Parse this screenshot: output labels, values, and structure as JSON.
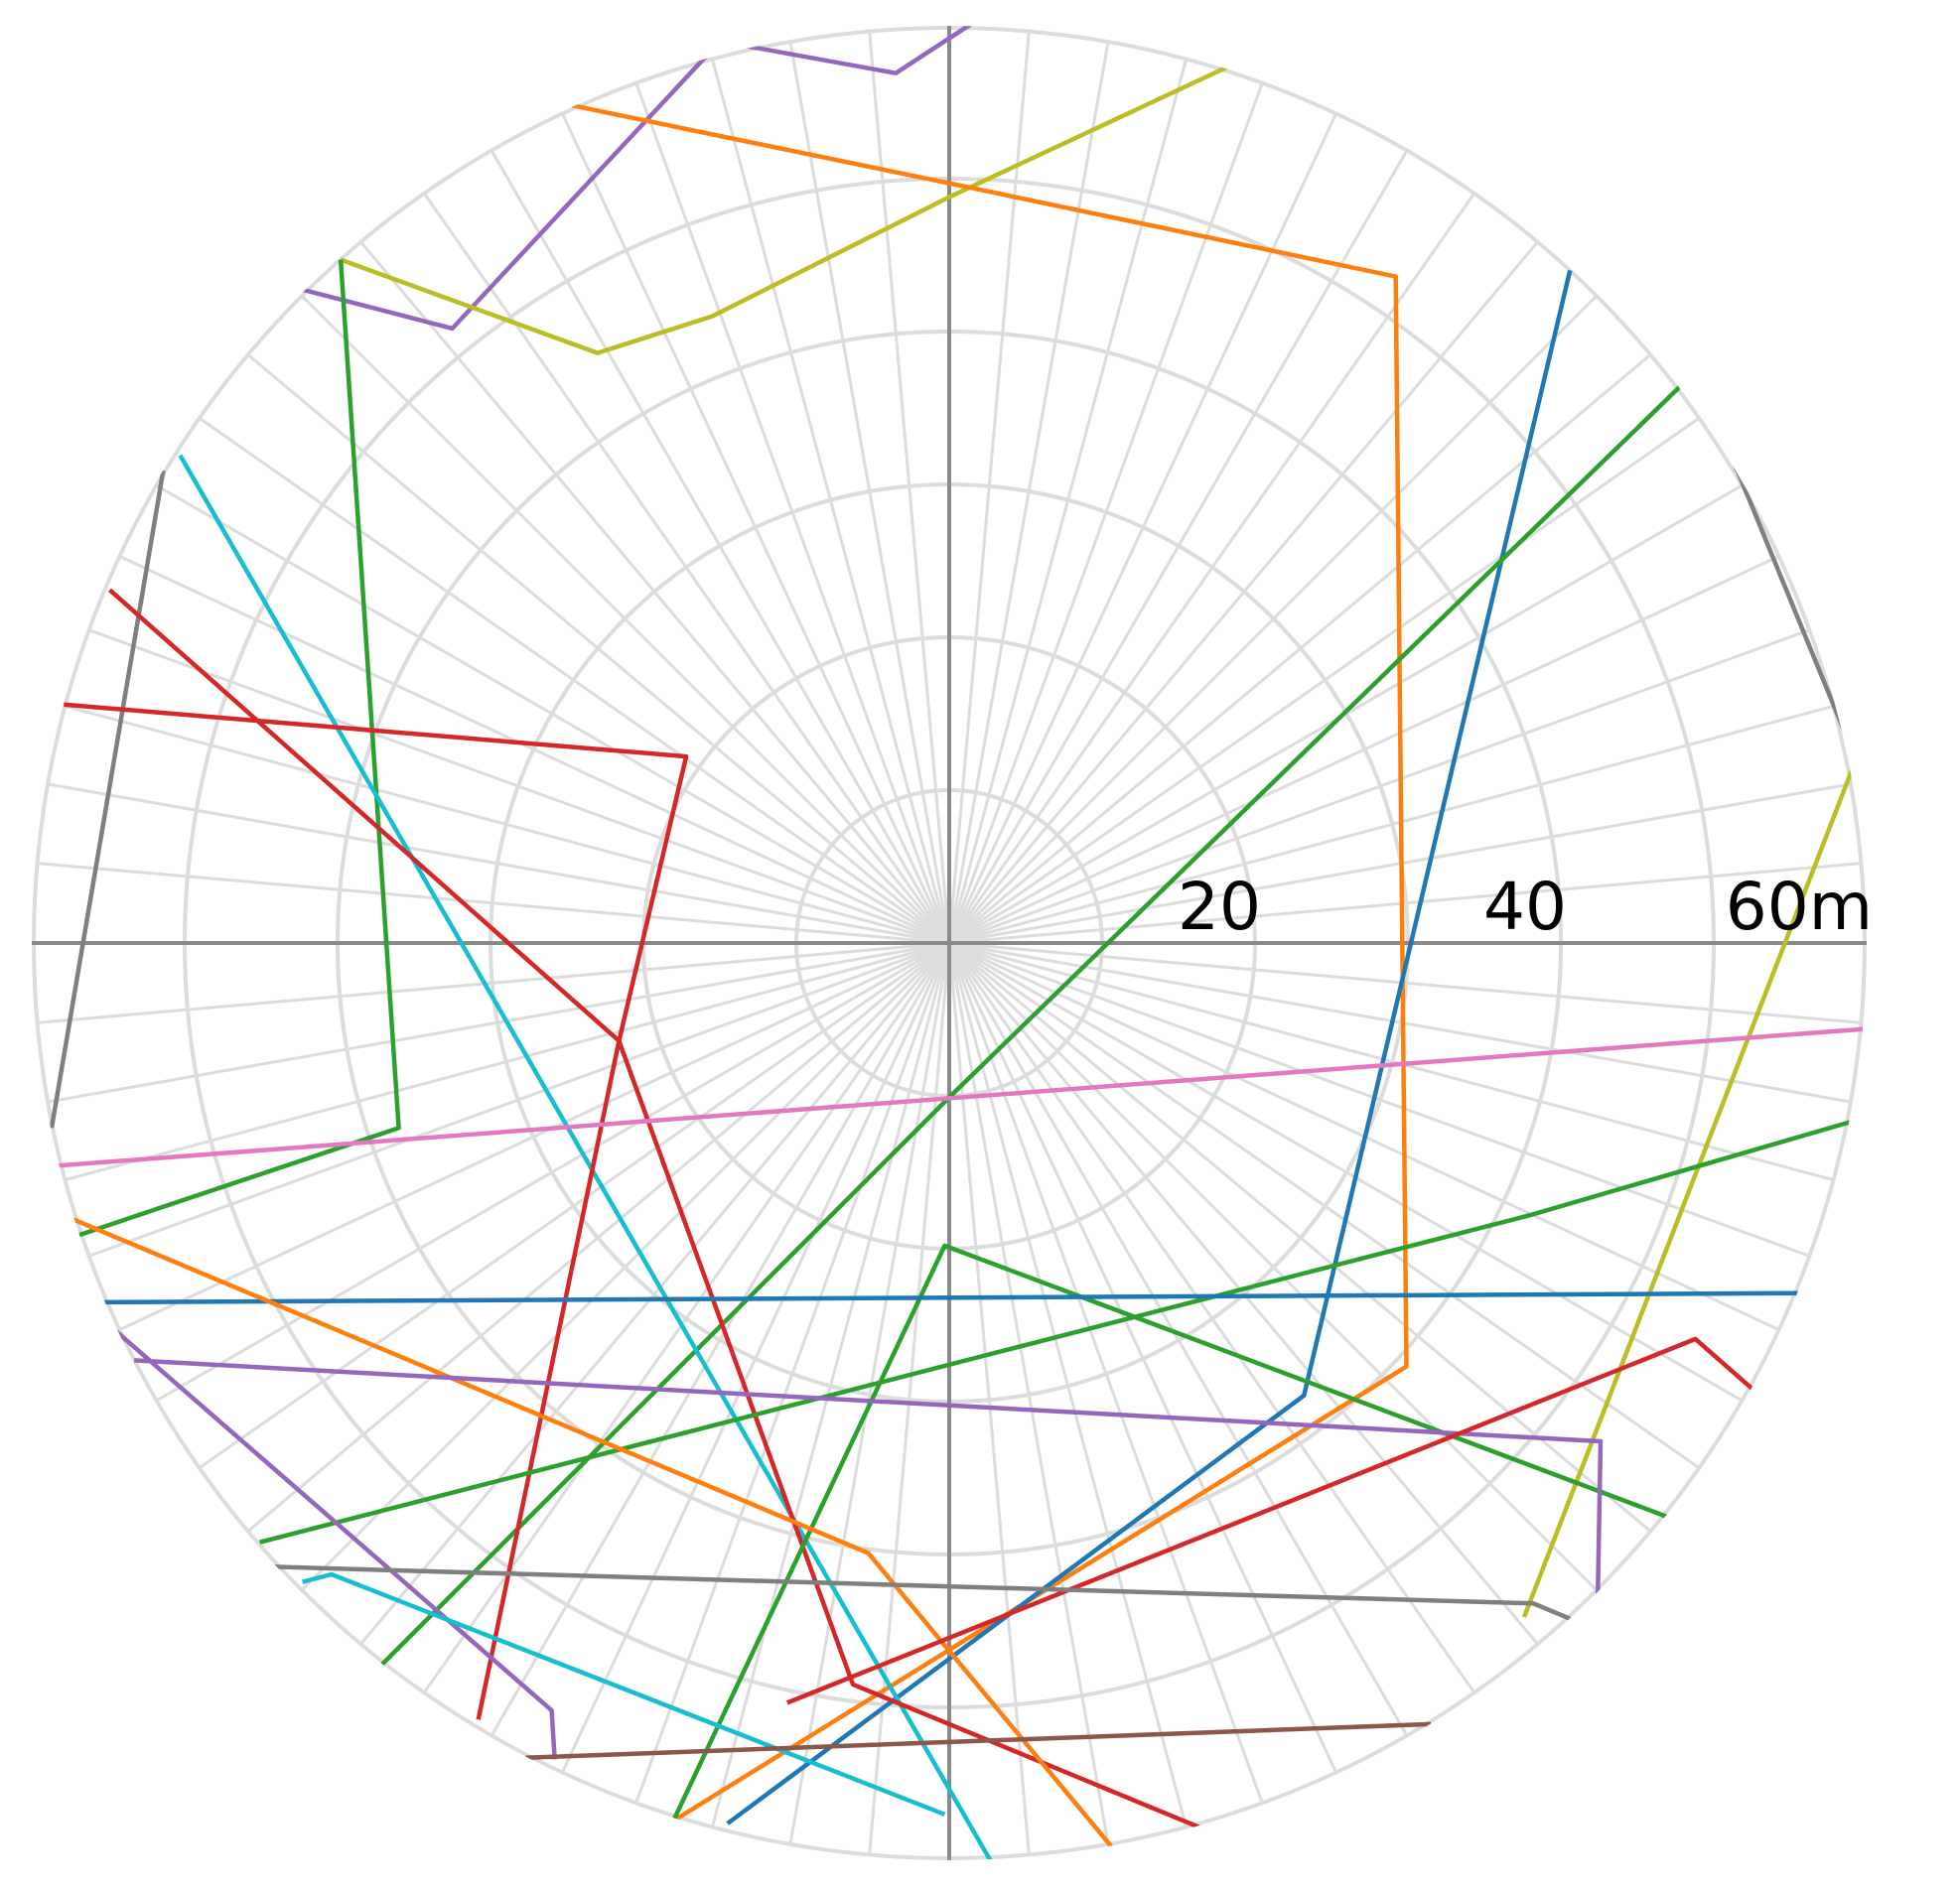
{
  "chart_data": {
    "type": "line",
    "subtype": "polar-trajectories",
    "title": "",
    "grid": true,
    "legend": "none",
    "r_max": 60,
    "ring_step": 10,
    "spoke_step_deg": 5,
    "radial_tick_labels": [
      {
        "value": 20,
        "text": "20"
      },
      {
        "value": 40,
        "text": "40"
      },
      {
        "value": 60,
        "text": "60m"
      }
    ],
    "series": [
      {
        "color": "#9467bd",
        "points": [
          [
            -46,
            43.7
          ],
          [
            -32.5,
            40.2
          ],
          [
            -16,
            57.9
          ],
          [
            -14.5,
            58.9
          ],
          [
            -3.5,
            56.9
          ],
          [
            1.4,
            60.1
          ]
        ]
      },
      {
        "color": "#bcbd22",
        "points": [
          [
            -39.8,
            44.7
          ],
          [
            -23,
            38.6
          ],
          [
            -15.5,
            41
          ],
          [
            0,
            48.8
          ],
          [
            18.4,
            57.4
          ]
        ]
      },
      {
        "color": "#ff7f0e",
        "points": [
          [
            -24.7,
            54.8
          ],
          [
            0,
            49.7
          ],
          [
            29.2,
            43.6
          ],
          [
            29.9,
            -27.7
          ],
          [
            -20.1,
            -58.7
          ]
        ]
      },
      {
        "color": "#1f77b4",
        "points": [
          [
            40.6,
            44
          ],
          [
            23.2,
            -29.6
          ],
          [
            -14.5,
            -57.6
          ]
        ]
      },
      {
        "color": "#2ca02c",
        "points": [
          [
            48.2,
            36.8
          ],
          [
            0,
            -10.1
          ],
          [
            -37.4,
            -47.5
          ]
        ]
      },
      {
        "color": "#7f7f7f",
        "points": [
          [
            51.5,
            30.9
          ],
          [
            51.3,
            31.5
          ],
          [
            59.3,
            12
          ]
        ]
      },
      {
        "color": "#bcbd22",
        "points": [
          [
            59.3,
            12
          ],
          [
            37.6,
            -44.1
          ]
        ]
      },
      {
        "color": "#2ca02c",
        "points": [
          [
            -39.8,
            44.7
          ],
          [
            -36,
            -12.1
          ],
          [
            -57.2,
            -19.2
          ]
        ]
      },
      {
        "color": "#7f7f7f",
        "points": [
          [
            -51.4,
            30.9
          ],
          [
            -58.7,
            -12.1
          ]
        ]
      },
      {
        "color": "#17becf",
        "points": [
          [
            -50.3,
            31.9
          ],
          [
            2.8,
            -60.2
          ]
        ]
      },
      {
        "color": "#d62728",
        "points": [
          [
            -54.9,
            23.1
          ],
          [
            -21.6,
            -6.4
          ],
          [
            -30.8,
            -50.8
          ]
        ]
      },
      {
        "color": "#d62728",
        "points": [
          [
            -57.9,
            15.6
          ],
          [
            -17.2,
            12.2
          ],
          [
            -21.6,
            -6.4
          ]
        ]
      },
      {
        "color": "#d62728",
        "points": [
          [
            -21.6,
            -6.4
          ],
          [
            -6.3,
            -48.5
          ],
          [
            16.5,
            -57.9
          ]
        ]
      },
      {
        "color": "#e377c2",
        "points": [
          [
            -58.7,
            -14.6
          ],
          [
            60.2,
            -5.6
          ]
        ]
      },
      {
        "color": "#2ca02c",
        "points": [
          [
            59.3,
            -11.6
          ],
          [
            38,
            -17.8
          ],
          [
            -45.1,
            -39.2
          ]
        ]
      },
      {
        "color": "#2ca02c",
        "points": [
          [
            47.4,
            -37.7
          ],
          [
            -0.3,
            -19.8
          ],
          [
            -18.6,
            -58.6
          ]
        ]
      },
      {
        "color": "#1f77b4",
        "points": [
          [
            -55.5,
            -23.5
          ],
          [
            55.7,
            -22.9
          ]
        ]
      },
      {
        "color": "#ff7f0e",
        "points": [
          [
            -57.7,
            -17.9
          ],
          [
            -5.3,
            -39.9
          ],
          [
            10.6,
            -59.1
          ]
        ]
      },
      {
        "color": "#9467bd",
        "points": [
          [
            -53.3,
            -27.3
          ],
          [
            42.6,
            -32.6
          ],
          [
            42.4,
            -43.5
          ]
        ]
      },
      {
        "color": "#9467bd",
        "points": [
          [
            -54.6,
            -25.3
          ],
          [
            -26,
            -50.2
          ],
          [
            -25.8,
            -53.4
          ]
        ]
      },
      {
        "color": "#d62728",
        "points": [
          [
            -10.6,
            -49.7
          ],
          [
            48.8,
            -25.9
          ],
          [
            52.9,
            -29.5
          ]
        ]
      },
      {
        "color": "#7f7f7f",
        "points": [
          [
            -44.4,
            -40.8
          ],
          [
            38.2,
            -43.2
          ],
          [
            40.6,
            -44.2
          ]
        ]
      },
      {
        "color": "#17becf",
        "points": [
          [
            -42.3,
            -41.8
          ],
          [
            -40.4,
            -41.3
          ],
          [
            -0.3,
            -57
          ]
        ]
      },
      {
        "color": "#8c564b",
        "points": [
          [
            -27.7,
            -53.3
          ],
          [
            31.5,
            -51.1
          ]
        ]
      },
      {
        "color": "#8c564b",
        "points": [
          [
            21.4,
            -56.5
          ],
          [
            24.7,
            -55.2
          ]
        ]
      }
    ]
  }
}
